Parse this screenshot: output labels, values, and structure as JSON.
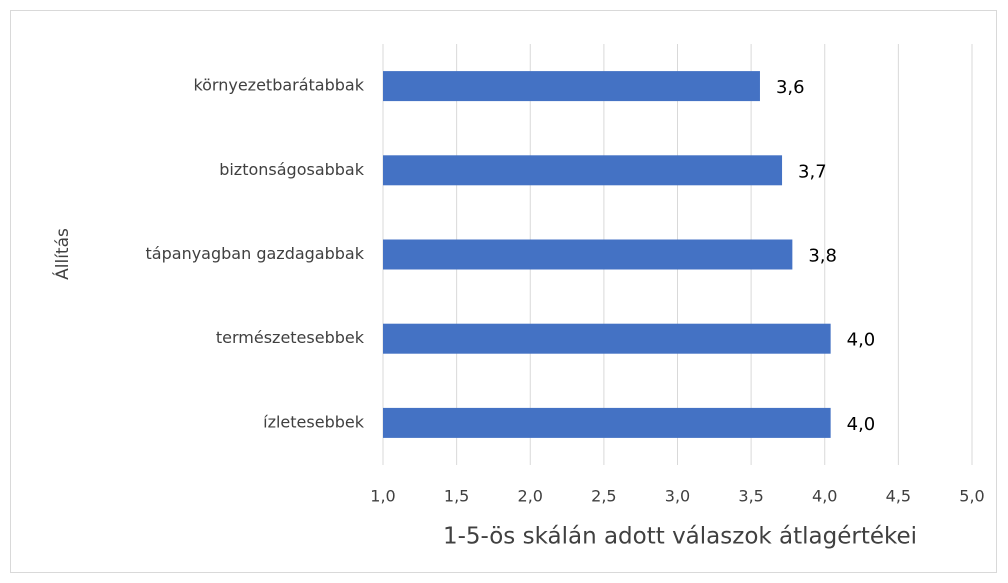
{
  "chart_data": {
    "type": "barh",
    "xlabel": "1-5-ös skálán adott válaszok átlagértékei",
    "ylabel": "Állítás",
    "categories": [
      "környezetbarátabbak",
      "biztonságosabbak",
      "tápanyagban gazdagabbak",
      "természetesebbek",
      "ízletesebbek"
    ],
    "values": [
      3.56,
      3.71,
      3.78,
      4.04,
      4.04
    ],
    "value_labels": [
      "3,6",
      "3,7",
      "3,8",
      "4,0",
      "4,0"
    ],
    "color": "#4472c4",
    "xlim": [
      1,
      5
    ],
    "xticks": [
      {
        "value": 1,
        "label": "1,0"
      },
      {
        "value": 1.5,
        "label": "1,5"
      },
      {
        "value": 2,
        "label": "2,0"
      },
      {
        "value": 2.5,
        "label": "2,5"
      },
      {
        "value": 3,
        "label": "3,0"
      },
      {
        "value": 3.5,
        "label": "3,5"
      },
      {
        "value": 4,
        "label": "4,0"
      },
      {
        "value": 4.5,
        "label": "4,5"
      },
      {
        "value": 5,
        "label": "5,0"
      }
    ],
    "grid": true
  }
}
